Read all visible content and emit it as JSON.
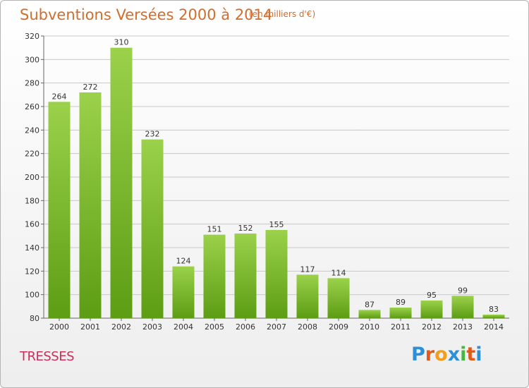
{
  "header": {
    "title": "Subventions Versées 2000 à 2014",
    "unit": "(en milliers d'€)"
  },
  "footer": {
    "commune": "TRESSES",
    "logo": "Proxiti"
  },
  "colors": {
    "title": "#d26d2c",
    "commune": "#c8305a",
    "bar_light": "#9bd14b",
    "bar_dark": "#5c9d14",
    "grid": "#c8c8c8",
    "logo_letters": [
      "#2e8fd6",
      "#e05a1a",
      "#f0a020",
      "#2e8fd6",
      "#4bb543",
      "#e05a1a",
      "#2e8fd6"
    ]
  },
  "chart_data": {
    "type": "bar",
    "title": "Subventions Versées 2000 à 2014",
    "subtitle": "(en milliers d'€)",
    "categories": [
      "2000",
      "2001",
      "2002",
      "2003",
      "2004",
      "2005",
      "2006",
      "2007",
      "2008",
      "2009",
      "2010",
      "2011",
      "2012",
      "2013",
      "2014"
    ],
    "values": [
      264,
      272,
      310,
      232,
      124,
      151,
      152,
      155,
      117,
      114,
      87,
      89,
      95,
      99,
      83
    ],
    "ylim": [
      80,
      320
    ],
    "yticks": [
      80,
      100,
      120,
      140,
      160,
      180,
      200,
      220,
      240,
      260,
      280,
      300,
      320
    ],
    "grid": true,
    "data_labels": true
  }
}
